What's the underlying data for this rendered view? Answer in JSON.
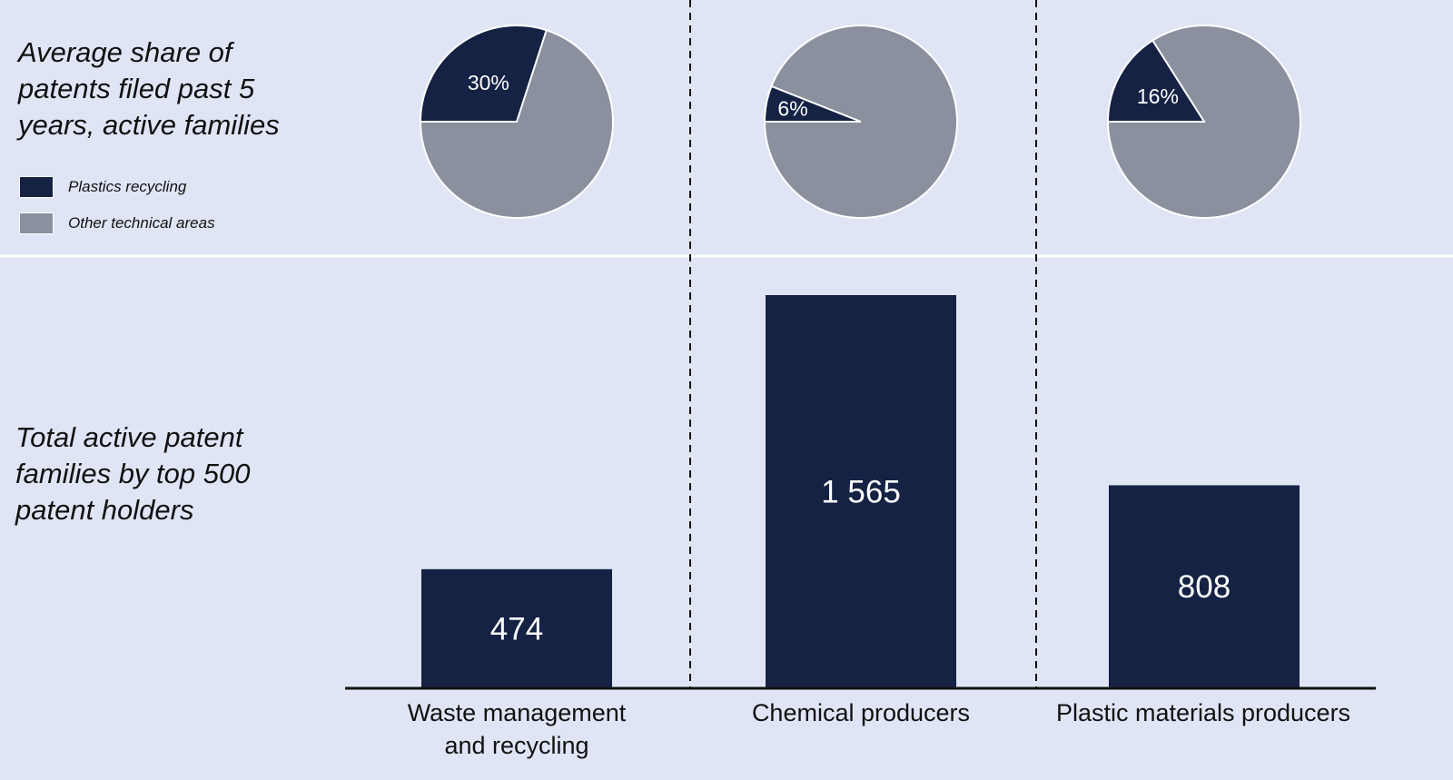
{
  "colors": {
    "background": "#dfe5f5",
    "recycling": "#152244",
    "other": "#8b909f",
    "separator": "#ffffff",
    "axis": "#111111"
  },
  "pie_section": {
    "title": "Average share of patents filed past 5 years, active families"
  },
  "bar_section": {
    "title": "Total active patent families by top 500 patent holders"
  },
  "legend": [
    {
      "label": "Plastics recycling",
      "color": "#152244"
    },
    {
      "label": "Other technical areas",
      "color": "#8b909f"
    }
  ],
  "categories": [
    {
      "line1": "Waste management",
      "line2": "and recycling"
    },
    {
      "line1": "Chemical producers",
      "line2": ""
    },
    {
      "line1": "Plastic materials producers",
      "line2": ""
    }
  ],
  "chart_data": [
    {
      "type": "pie",
      "chart": "share of patents",
      "categories": [
        "Waste management and recycling",
        "Chemical producers",
        "Plastic materials producers"
      ],
      "series": [
        {
          "name": "Plastics recycling",
          "values": [
            30,
            6,
            16
          ]
        },
        {
          "name": "Other technical areas",
          "values": [
            70,
            94,
            84
          ]
        }
      ],
      "labels": [
        "30%",
        "6%",
        "16%"
      ]
    },
    {
      "type": "bar",
      "categories": [
        "Waste management and recycling",
        "Chemical producers",
        "Plastic materials producers"
      ],
      "values": [
        474,
        1565,
        808
      ],
      "value_labels": [
        "474",
        "1 565",
        "808"
      ],
      "ylim": [
        0,
        1565
      ]
    }
  ]
}
